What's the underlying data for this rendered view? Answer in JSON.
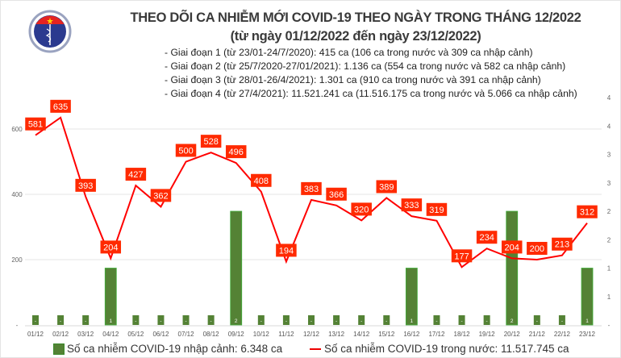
{
  "logo": {
    "text_top": "BỘ Y TẾ",
    "text_bottom": "MINISTRY OF HEALTH"
  },
  "title_line1": "THEO DÕI CA NHIỄM MỚI COVID-19 THEO NGÀY TRONG THÁNG 12/2022",
  "title_line2": "(từ ngày 01/12/2022 đến ngày 23/12/2022)",
  "notes": [
    "- Giai đoạn 1 (từ 23/01-24/7/2020): 415 ca (106 ca trong nước và 309 ca nhập cảnh)",
    "- Giai đoạn 2 (từ 25/7/2020-27/01/2021): 1.136 ca (554 ca trong nước và 582 ca nhập cảnh)",
    "- Giai đoạn 3 (từ 28/01-26/4/2021): 1.301 ca (910 ca trong nước và 391 ca nhập cảnh)",
    "- Giai đoạn 4 (từ 27/4/2021): 11.521.241 ca (11.516.175 ca trong nước và 5.066 ca nhập cảnh)"
  ],
  "chart_data": {
    "type": "bar+line",
    "categories": [
      "01/12",
      "02/12",
      "03/12",
      "04/12",
      "05/12",
      "06/12",
      "07/12",
      "08/12",
      "09/12",
      "10/12",
      "11/12",
      "12/12",
      "13/12",
      "14/12",
      "15/12",
      "16/12",
      "17/12",
      "18/12",
      "19/12",
      "20/12",
      "21/12",
      "22/12",
      "23/12"
    ],
    "series": [
      {
        "name": "Số ca nhiễm COVID-19 nhập cảnh: 6.348 ca",
        "type": "bar",
        "axis": "right",
        "color": "#548235",
        "values": [
          0,
          0,
          0,
          1,
          0,
          0,
          0,
          0,
          2,
          0,
          0,
          0,
          0,
          0,
          0,
          1,
          0,
          0,
          0,
          2,
          0,
          0,
          1
        ]
      },
      {
        "name": "Số ca nhiễm COVID-19 trong nước: 11.517.745 ca",
        "type": "line",
        "axis": "left",
        "color": "#ff0000",
        "values": [
          581,
          635,
          393,
          204,
          427,
          362,
          500,
          528,
          496,
          408,
          194,
          383,
          366,
          320,
          389,
          333,
          319,
          177,
          234,
          204,
          200,
          213,
          312
        ]
      }
    ],
    "left_axis": {
      "ylim": [
        0,
        700
      ],
      "ticks": [
        "-",
        "200",
        "400",
        "600"
      ],
      "tick_values": [
        0,
        200,
        400,
        600
      ]
    },
    "right_axis": {
      "ylim": [
        0,
        4.5
      ],
      "ticks": [
        "-",
        "1",
        "1",
        "2",
        "2",
        "3",
        "3",
        "4",
        "4"
      ],
      "tick_values": [
        0,
        0.5,
        1,
        1.5,
        2,
        2.5,
        3,
        3.5,
        4
      ]
    },
    "zero_label": "-",
    "grid": true,
    "legend": "bottom",
    "label_color": "#ff2a00"
  }
}
